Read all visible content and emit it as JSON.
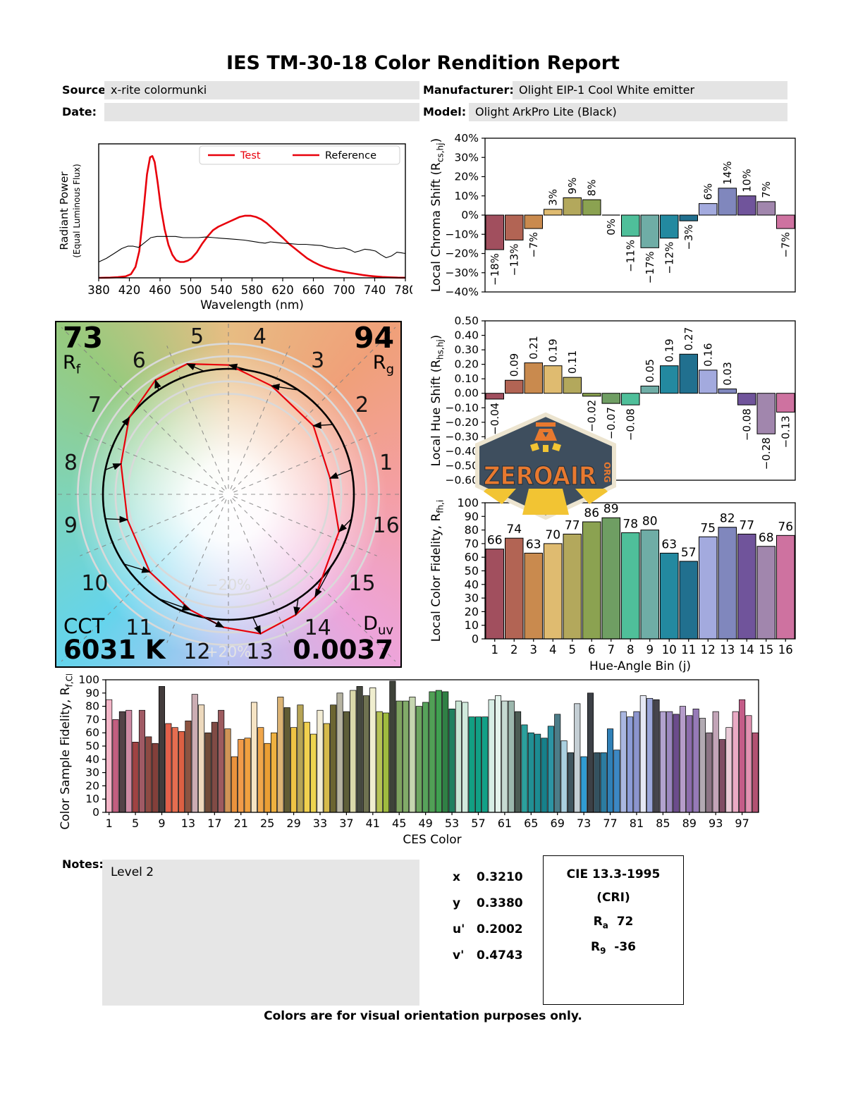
{
  "title": "IES TM-30-18 Color Rendition Report",
  "meta": {
    "source_label": "Source:",
    "source": "x-rite colormunki",
    "date_label": "Date:",
    "date": "",
    "manufacturer_label": "Manufacturer:",
    "manufacturer": "Olight EIP-1 Cool White emitter",
    "model_label": "Model:",
    "model": "Olight ArkPro Lite (Black)"
  },
  "notes": {
    "label": "Notes:",
    "text": "Level 2"
  },
  "chromaticity": {
    "rows": [
      {
        "k": "x",
        "v": "0.3210"
      },
      {
        "k": "y",
        "v": "0.3380"
      },
      {
        "k": "u'",
        "v": "0.2002"
      },
      {
        "k": "v'",
        "v": "0.4743"
      }
    ]
  },
  "cri_box": {
    "title": "CIE 13.3-1995",
    "subtitle": "(CRI)",
    "ra_base": "R",
    "ra_sub": "a",
    "ra_value": "72",
    "r9_base": "R",
    "r9_sub": "9",
    "r9_value": "-36"
  },
  "footer": "Colors are for visual orientation purposes only.",
  "logo": {
    "text": "ZEROAIR",
    "org": "ORG"
  },
  "bin_colors": [
    "#a14f5e",
    "#b26454",
    "#c98a4e",
    "#dfbb70",
    "#b3a85c",
    "#8ba251",
    "#6f9e63",
    "#4fbf9a",
    "#6fada6",
    "#2389a0",
    "#21708f",
    "#a3aade",
    "#8087bd",
    "#70549b",
    "#a186ad",
    "#ce72a0"
  ],
  "cvg": {
    "rf_value": "73",
    "rf_base": "R",
    "rf_sub": "f",
    "rg_value": "94",
    "rg_base": "R",
    "rg_sub": "g",
    "cct_label": "CCT",
    "cct_value": "6031 K",
    "duv_base": "D",
    "duv_sub": "uv",
    "duv_value": "0.0037",
    "ring_inner_label": "−20%",
    "ring_outer_label": "+20%",
    "bins": [
      "1",
      "2",
      "3",
      "4",
      "5",
      "6",
      "7",
      "8",
      "9",
      "10",
      "11",
      "12",
      "13",
      "14",
      "15",
      "16"
    ],
    "chroma_shift_pct": [
      -18,
      -13,
      -7,
      3,
      9,
      8,
      0,
      -11,
      -17,
      -12,
      -3,
      6,
      14,
      10,
      7,
      -7
    ],
    "hue_shift": [
      -0.04,
      0.09,
      0.21,
      0.19,
      0.11,
      -0.02,
      -0.07,
      -0.08,
      0.05,
      0.19,
      0.27,
      0.16,
      0.03,
      -0.08,
      -0.28,
      -0.13
    ]
  },
  "chart_data": [
    {
      "id": "spd",
      "type": "line",
      "xlabel": "Wavelength (nm)",
      "ylabel": "Radiant Power",
      "ylabel2": "(Equal Luminous Flux)",
      "xlim": [
        380,
        780
      ],
      "ylim": [
        0,
        1.1
      ],
      "xticks": [
        380,
        420,
        460,
        500,
        540,
        580,
        620,
        660,
        700,
        740,
        780
      ],
      "legend": {
        "swatch_color": "#e8000b",
        "items": [
          {
            "label": "Test",
            "text_color": "#e8000b"
          },
          {
            "label": "Reference",
            "text_color": "#000000"
          }
        ]
      },
      "series": [
        {
          "name": "Test",
          "color": "#e8000b",
          "width": 2.6,
          "x": [
            380,
            395,
            405,
            415,
            422,
            428,
            433,
            438,
            443,
            447,
            450,
            453,
            457,
            461,
            466,
            471,
            476,
            481,
            486,
            491,
            496,
            501,
            508,
            515,
            522,
            529,
            536,
            543,
            550,
            557,
            564,
            571,
            578,
            585,
            592,
            599,
            606,
            613,
            620,
            628,
            636,
            644,
            652,
            660,
            668,
            676,
            684,
            692,
            700,
            708,
            716,
            724,
            732,
            740,
            750,
            760,
            770,
            780
          ],
          "y": [
            0,
            0.002,
            0.005,
            0.012,
            0.03,
            0.09,
            0.22,
            0.52,
            0.85,
            0.99,
            1.0,
            0.95,
            0.78,
            0.58,
            0.4,
            0.27,
            0.19,
            0.145,
            0.13,
            0.13,
            0.14,
            0.16,
            0.21,
            0.28,
            0.34,
            0.39,
            0.42,
            0.44,
            0.46,
            0.48,
            0.5,
            0.51,
            0.51,
            0.5,
            0.48,
            0.45,
            0.41,
            0.37,
            0.33,
            0.28,
            0.24,
            0.2,
            0.16,
            0.13,
            0.105,
            0.085,
            0.07,
            0.058,
            0.048,
            0.04,
            0.032,
            0.024,
            0.017,
            0.012,
            0.007,
            0.004,
            0.002,
            0.001
          ]
        },
        {
          "name": "Reference",
          "color": "#000000",
          "width": 1.1,
          "x": [
            380,
            390,
            400,
            410,
            418,
            425,
            432,
            440,
            448,
            456,
            464,
            472,
            480,
            490,
            500,
            510,
            520,
            530,
            540,
            550,
            560,
            570,
            580,
            590,
            597,
            604,
            612,
            620,
            630,
            640,
            650,
            660,
            670,
            680,
            690,
            700,
            708,
            714,
            720,
            727,
            734,
            741,
            748,
            755,
            762,
            769,
            775,
            780
          ],
          "y": [
            0.13,
            0.16,
            0.2,
            0.24,
            0.26,
            0.26,
            0.25,
            0.29,
            0.33,
            0.34,
            0.34,
            0.34,
            0.34,
            0.33,
            0.33,
            0.33,
            0.335,
            0.33,
            0.325,
            0.32,
            0.315,
            0.31,
            0.3,
            0.29,
            0.285,
            0.295,
            0.29,
            0.285,
            0.28,
            0.275,
            0.275,
            0.27,
            0.265,
            0.25,
            0.24,
            0.245,
            0.23,
            0.21,
            0.22,
            0.235,
            0.23,
            0.22,
            0.19,
            0.165,
            0.18,
            0.21,
            0.205,
            0.2
          ]
        }
      ]
    },
    {
      "id": "chroma",
      "type": "bar",
      "ylabel_segments": [
        {
          "t": "Local Chroma Shift (R"
        },
        {
          "t": "cs,hj",
          "sub": true
        },
        {
          "t": ")"
        }
      ],
      "ylim": [
        -40,
        40
      ],
      "ystep": 10,
      "yfmt": "pct",
      "values": [
        -18,
        -13,
        -7,
        3,
        9,
        8,
        0,
        -11,
        -17,
        -12,
        -3,
        6,
        14,
        10,
        7,
        -7
      ],
      "labels": [
        "−18%",
        "−13%",
        "−7%",
        "3%",
        "9%",
        "8%",
        "0%",
        "−11%",
        "−17%",
        "−12%",
        "−3%",
        "6%",
        "14%",
        "10%",
        "7%",
        "−7%"
      ],
      "label_mode": "vert",
      "colors": "bins"
    },
    {
      "id": "hue",
      "type": "bar",
      "ylabel_segments": [
        {
          "t": "Local Hue Shift (R"
        },
        {
          "t": "hs,hj",
          "sub": true
        },
        {
          "t": ")"
        }
      ],
      "ylim": [
        -0.6,
        0.5
      ],
      "ystep": 0.1,
      "yfmt": "dec2",
      "values": [
        -0.04,
        0.09,
        0.21,
        0.19,
        0.11,
        -0.02,
        -0.07,
        -0.08,
        0.05,
        0.19,
        0.27,
        0.16,
        0.03,
        -0.08,
        -0.28,
        -0.13
      ],
      "labels": [
        "−0.04",
        "0.09",
        "0.21",
        "0.19",
        "0.11",
        "−0.02",
        "−0.07",
        "−0.08",
        "0.05",
        "0.19",
        "0.27",
        "0.16",
        "0.03",
        "−0.08",
        "−0.28",
        "−0.13"
      ],
      "label_mode": "vert",
      "colors": "bins"
    },
    {
      "id": "fid16",
      "type": "bar",
      "ylabel_segments": [
        {
          "t": "Local Color Fidelity, R"
        },
        {
          "t": "fh,i",
          "sub": true
        }
      ],
      "xlabel": "Hue-Angle Bin (j)",
      "ylim": [
        0,
        100
      ],
      "ystep": 10,
      "yfmt": "int",
      "values": [
        66,
        74,
        63,
        70,
        77,
        86,
        89,
        78,
        80,
        63,
        57,
        75,
        82,
        77,
        68,
        76
      ],
      "labels": [
        "66",
        "74",
        "63",
        "70",
        "77",
        "86",
        "89",
        "78",
        "80",
        "63",
        "57",
        "75",
        "82",
        "77",
        "68",
        "76"
      ],
      "label_mode": "horiz",
      "colors": "bins",
      "xtick_labels": [
        "1",
        "2",
        "3",
        "4",
        "5",
        "6",
        "7",
        "8",
        "9",
        "10",
        "11",
        "12",
        "13",
        "14",
        "15",
        "16"
      ],
      "xtick_every": 1
    },
    {
      "id": "ces",
      "type": "bar",
      "ylabel_segments": [
        {
          "t": "Color Sample Fidelity, R"
        },
        {
          "t": "f,CESi",
          "sub": true
        }
      ],
      "xlabel": "CES Color",
      "ylim": [
        0,
        100
      ],
      "ystep": 10,
      "yfmt": "int",
      "values": [
        85,
        70,
        76,
        77,
        53,
        77,
        57,
        52,
        95,
        67,
        64,
        61,
        69,
        89,
        81,
        60,
        68,
        77,
        63,
        42,
        55,
        56,
        83,
        64,
        52,
        60,
        87,
        79,
        64,
        81,
        68,
        59,
        77,
        67,
        81,
        90,
        76,
        92,
        95,
        88,
        94,
        76,
        75,
        99,
        84,
        84,
        87,
        80,
        83,
        91,
        92,
        91,
        78,
        84,
        83,
        72,
        72,
        72,
        85,
        88,
        84,
        84,
        76,
        66,
        60,
        59,
        56,
        65,
        74,
        54,
        45,
        82,
        42,
        90,
        45,
        45,
        63,
        47,
        76,
        72,
        76,
        88,
        86,
        85,
        76,
        76,
        74,
        80,
        73,
        78,
        71,
        60,
        76,
        55,
        64,
        76,
        85,
        73,
        60
      ],
      "label_mode": "none",
      "colors": [
        "#f4b6c8",
        "#c25f80",
        "#544247",
        "#cf8aa4",
        "#a04343",
        "#a05a64",
        "#8e4a42",
        "#833f3a",
        "#433c3c",
        "#e4604a",
        "#e56d50",
        "#dc6043",
        "#8d5441",
        "#cbadb3",
        "#edd9bd",
        "#704b39",
        "#804b45",
        "#9d5b5f",
        "#d09557",
        "#ea923d",
        "#f19b49",
        "#f0a040",
        "#f6e4c4",
        "#f0a64b",
        "#eb9e34",
        "#eeb140",
        "#dcb475",
        "#615c34",
        "#efc345",
        "#b7a456",
        "#f1d04f",
        "#edd450",
        "#f3edd5",
        "#d6ba4b",
        "#6c6532",
        "#b7b4a2",
        "#5e5e39",
        "#dad8aa",
        "#46493f",
        "#6f7251",
        "#f0eecf",
        "#b7c355",
        "#9fbb3f",
        "#3e4239",
        "#7ea25f",
        "#81aa69",
        "#c5d5af",
        "#6ca45f",
        "#57a25b",
        "#51a056",
        "#40a051",
        "#308045",
        "#20805f",
        "#cae5d4",
        "#d1eadc",
        "#12a083",
        "#11a085",
        "#13a087",
        "#d7eee5",
        "#e4f3ec",
        "#c6dad2",
        "#9cb7ad",
        "#4c5c54",
        "#2ca09c",
        "#219094",
        "#1c8c92",
        "#17808a",
        "#2c94a4",
        "#4c7c88",
        "#aad0e0",
        "#405660",
        "#c4ced4",
        "#309cd2",
        "#3c4046",
        "#345260",
        "#2c7ca0",
        "#3080b7",
        "#3c88c4",
        "#aab7e0",
        "#8c9cd7",
        "#8c95ce",
        "#e5e8f4",
        "#9ca7da",
        "#46454c",
        "#b2a2ce",
        "#9c88bf",
        "#6c4c8c",
        "#b59cca",
        "#8c6cac",
        "#967ab7",
        "#b2aab2",
        "#8c7484",
        "#c2a4b7",
        "#804c64",
        "#eacad7",
        "#eaaac4",
        "#c45c88",
        "#e292b2",
        "#b25272"
      ],
      "xtick_labels": [
        "1",
        "5",
        "9",
        "13",
        "17",
        "21",
        "25",
        "29",
        "33",
        "37",
        "41",
        "45",
        "49",
        "53",
        "57",
        "61",
        "65",
        "69",
        "73",
        "77",
        "81",
        "85",
        "89",
        "93",
        "97"
      ],
      "xtick_every": 4
    }
  ]
}
